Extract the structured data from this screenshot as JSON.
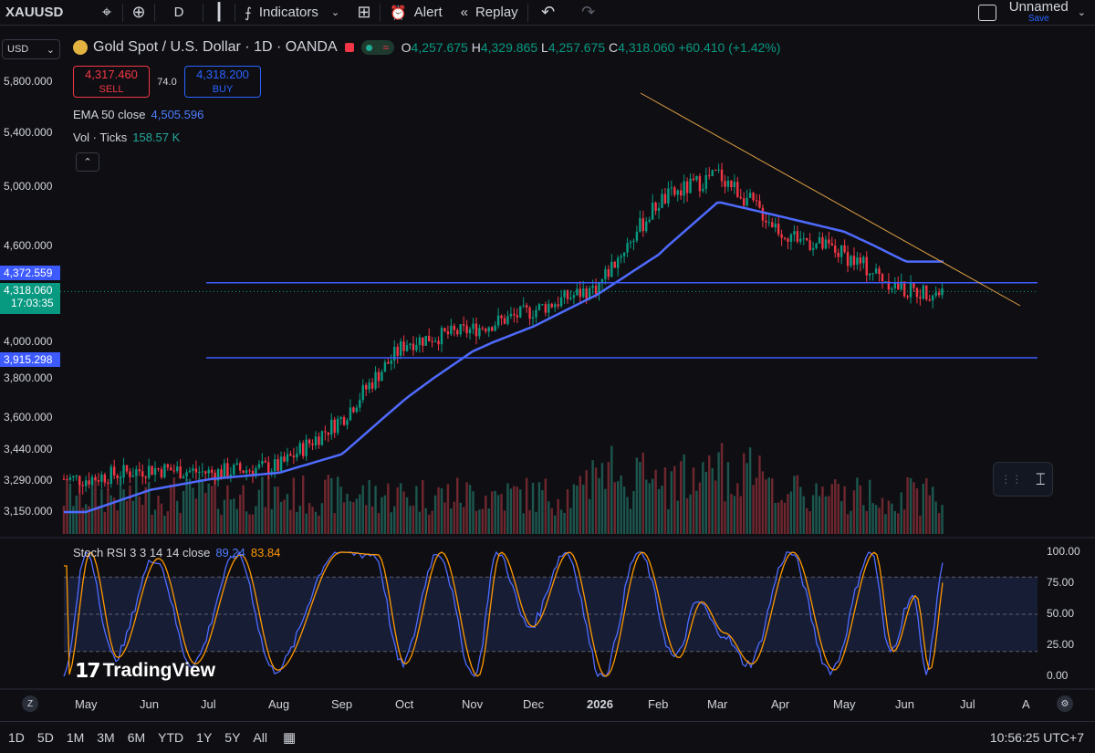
{
  "toolbar": {
    "symbol": "XAUUSD",
    "interval": "D",
    "indicators": "Indicators",
    "alert": "Alert",
    "replay": "Replay",
    "layout_name": "Unnamed",
    "save": "Save",
    "icons": [
      "symbol-search-icon",
      "compare-plus-icon",
      "candles-icon",
      "indicators-icon",
      "templates-grid-icon",
      "alert-clock-icon",
      "replay-icon",
      "undo-icon",
      "redo-icon",
      "layout-icon"
    ]
  },
  "legend": {
    "currency": "USD",
    "title": "Gold Spot / U.S. Dollar · 1D · OANDA",
    "o": "4,257.675",
    "h": "4,329.865",
    "l": "4,257.675",
    "c": "4,318.060",
    "change": "+60.410 (+1.42%)",
    "o_label": "O",
    "h_label": "H",
    "l_label": "L",
    "c_label": "C"
  },
  "trade": {
    "sell_price": "4,317.460",
    "sell_label": "SELL",
    "spread": "74.0",
    "buy_price": "4,318.200",
    "buy_label": "BUY"
  },
  "studies": {
    "ema_label": "EMA 50 close",
    "ema_value": "4,505.596",
    "vol_label": "Vol · Ticks",
    "vol_value": "158.57 K",
    "stoch_label": "Stoch RSI 3 3 14 14 close",
    "stoch_k": "89.24",
    "stoch_d": "83.84"
  },
  "price_axis": [
    "5,800.000",
    "5,400.000",
    "5,000.000",
    "4,600.000",
    "4,000.000",
    "3,800.000",
    "3,600.000",
    "3,440.000",
    "3,290.000",
    "3,150.000"
  ],
  "price_tags": {
    "line_high": "4,372.559",
    "last": "4,318.060",
    "countdown": "17:03:35",
    "line_low": "3,915.298"
  },
  "stoch_axis": [
    "100.00",
    "75.00",
    "50.00",
    "25.00",
    "0.00"
  ],
  "time_axis": [
    "May",
    "Jun",
    "Jul",
    "Aug",
    "Sep",
    "Oct",
    "Nov",
    "Dec",
    "2026",
    "Feb",
    "Mar",
    "Apr",
    "May",
    "Jun",
    "Jul",
    "A"
  ],
  "ranges": [
    "1D",
    "5D",
    "1M",
    "3M",
    "6M",
    "YTD",
    "1Y",
    "5Y",
    "All"
  ],
  "clock": "10:56:25 UTC+7",
  "brand": "TradingView",
  "colors": {
    "up": "#089981",
    "down": "#f23645",
    "ema": "#4f6bff",
    "trendline": "#e0a044",
    "hline": "#3d5afe",
    "stoch_k": "#4f6bff",
    "stoch_d": "#ff9800"
  },
  "chart_data": {
    "type": "candlestick",
    "title": "Gold Spot / U.S. Dollar · 1D · OANDA",
    "x": [
      "May",
      "Jun",
      "Jul",
      "Aug",
      "Sep",
      "Oct",
      "Nov",
      "Dec",
      "2026",
      "Feb",
      "Mar",
      "Apr",
      "May",
      "Jun"
    ],
    "close_approx": [
      3300,
      3350,
      3330,
      3360,
      3600,
      4000,
      4080,
      4200,
      4350,
      4900,
      5100,
      4700,
      4550,
      4318
    ],
    "ema50_approx": [
      3150,
      3250,
      3300,
      3330,
      3420,
      3700,
      3950,
      4100,
      4300,
      4550,
      4900,
      4800,
      4700,
      4505
    ],
    "horizontal_lines": [
      4372.559,
      3915.298
    ],
    "ylim": [
      3100,
      5900
    ],
    "grid": false,
    "stoch_rsi": {
      "k_last": 89.24,
      "d_last": 83.84,
      "bands": [
        20,
        80
      ],
      "ylim": [
        0,
        100
      ]
    }
  }
}
